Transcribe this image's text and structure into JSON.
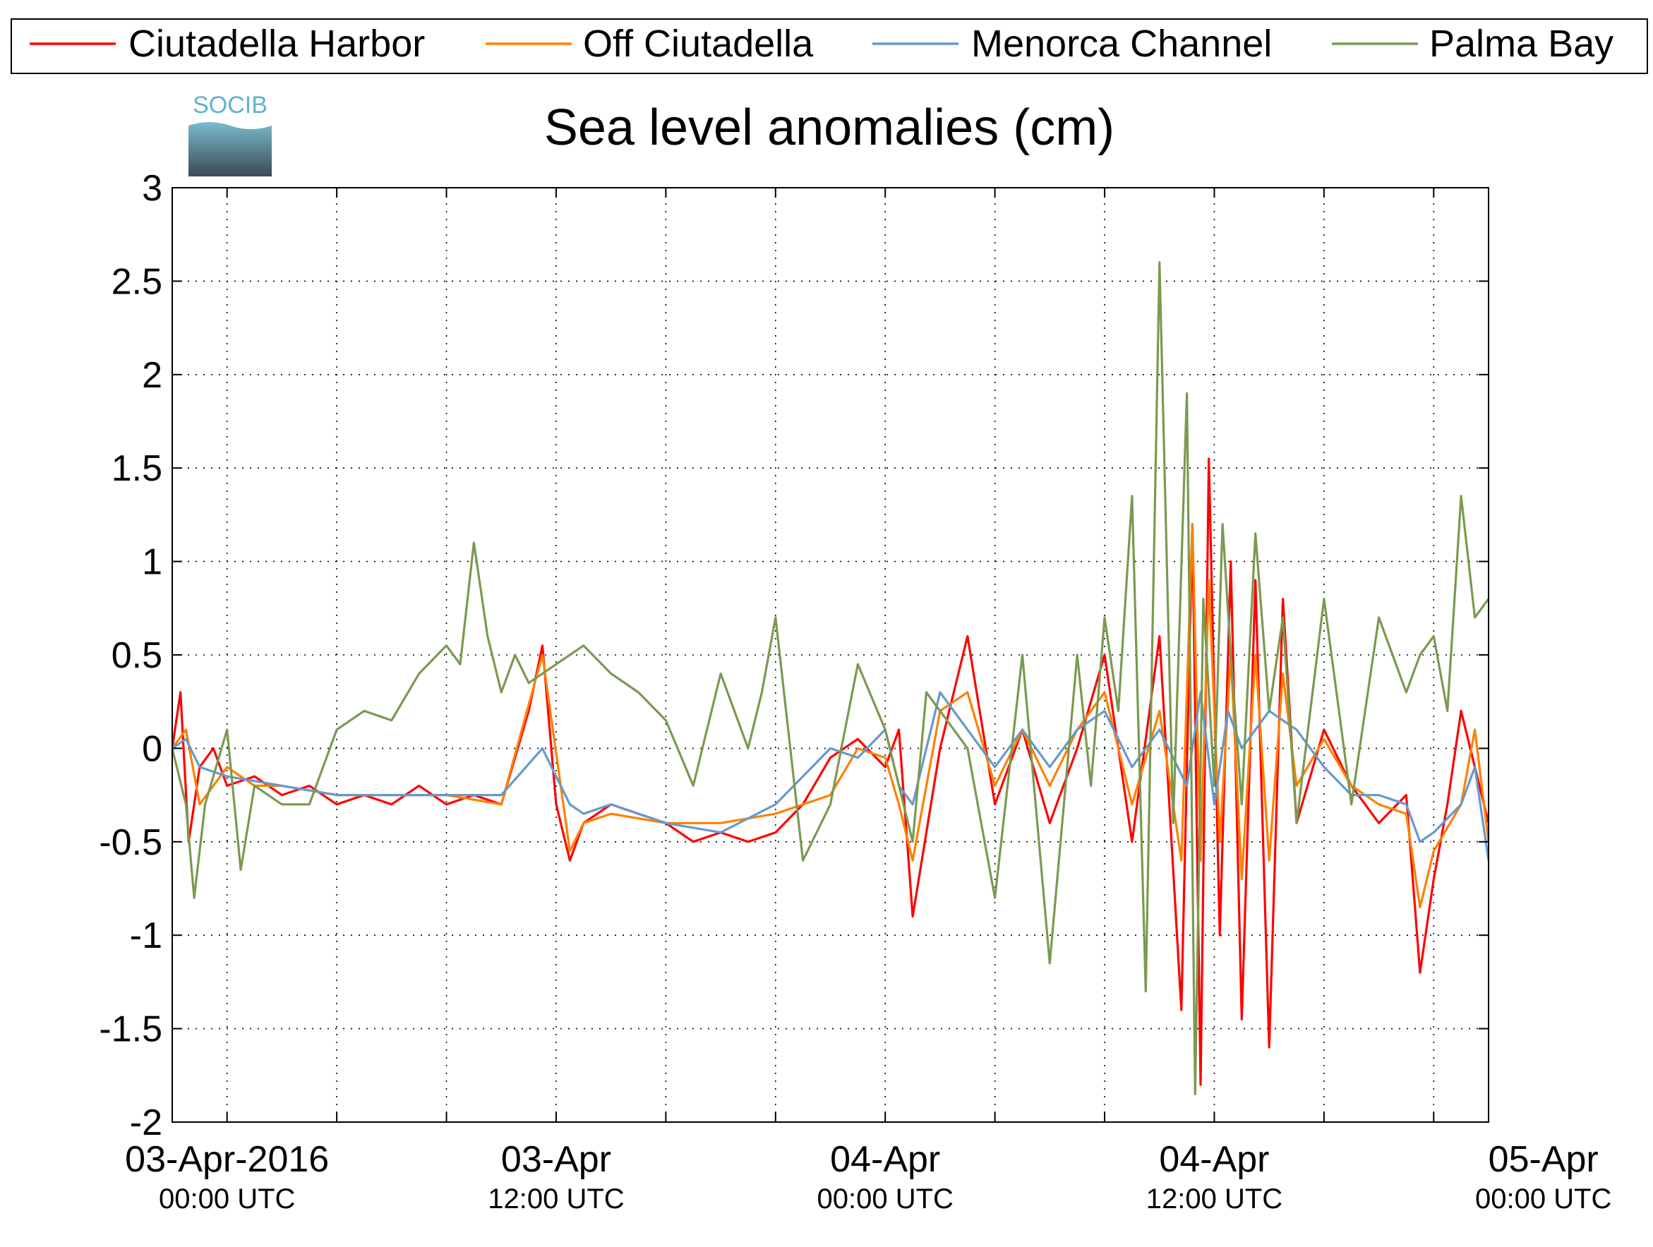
{
  "chart_data": {
    "type": "line",
    "title": "Sea level anomalies (cm)",
    "logo_text": "SOCIB",
    "xlabel": "",
    "ylabel": "",
    "ylim": [
      -2,
      3
    ],
    "yticks": [
      {
        "value": 3,
        "label": "3"
      },
      {
        "value": 2.5,
        "label": "2.5"
      },
      {
        "value": 2,
        "label": "2"
      },
      {
        "value": 1.5,
        "label": "1.5"
      },
      {
        "value": 1,
        "label": "1"
      },
      {
        "value": 0.5,
        "label": "0.5"
      },
      {
        "value": 0,
        "label": "0"
      },
      {
        "value": -0.5,
        "label": "-0.5"
      },
      {
        "value": -1,
        "label": "-1"
      },
      {
        "value": -1.5,
        "label": "-1.5"
      },
      {
        "value": -2,
        "label": "-2"
      }
    ],
    "x_start": "2016-04-02 22:00 UTC",
    "x_end": "2016-04-05 00:00 UTC",
    "x_unit": "hours",
    "xlim_hours": [
      0,
      48
    ],
    "xticks": [
      {
        "hour": 2,
        "label": "03-Apr-2016",
        "sublabel": "00:00 UTC"
      },
      {
        "hour": 14,
        "label": "03-Apr",
        "sublabel": "12:00 UTC"
      },
      {
        "hour": 26,
        "label": "04-Apr",
        "sublabel": "00:00 UTC"
      },
      {
        "hour": 38,
        "label": "04-Apr",
        "sublabel": "12:00 UTC"
      },
      {
        "hour": 50,
        "label": "05-Apr",
        "sublabel": "00:00 UTC"
      }
    ],
    "minor_xticks_hours": [
      0,
      2,
      6,
      10,
      14,
      18,
      22,
      26,
      30,
      34,
      38,
      42,
      46
    ],
    "grid": "dotted",
    "legend_position": "top",
    "series": [
      {
        "name": "Ciutadella Harbor",
        "color": "#ff0000",
        "x": [
          0,
          0.3,
          0.6,
          1,
          1.5,
          2,
          3,
          4,
          5,
          6,
          7,
          8,
          9,
          10,
          11,
          12,
          13,
          13.5,
          14,
          14.5,
          15,
          16,
          17,
          18,
          19,
          20,
          21,
          22,
          23,
          24,
          25,
          26,
          26.5,
          27,
          28,
          29,
          30,
          31,
          32,
          33,
          34,
          35,
          36,
          36.8,
          37.2,
          37.5,
          37.8,
          38.2,
          38.6,
          39,
          39.5,
          40,
          40.5,
          41,
          42,
          43,
          44,
          45,
          45.5,
          46,
          46.5,
          47,
          47.5,
          48
        ],
        "y": [
          0,
          0.3,
          -0.5,
          -0.1,
          0,
          -0.2,
          -0.15,
          -0.25,
          -0.2,
          -0.3,
          -0.25,
          -0.3,
          -0.2,
          -0.3,
          -0.25,
          -0.3,
          0.2,
          0.55,
          -0.3,
          -0.6,
          -0.4,
          -0.3,
          -0.35,
          -0.4,
          -0.5,
          -0.45,
          -0.5,
          -0.45,
          -0.3,
          -0.05,
          0.05,
          -0.1,
          0.1,
          -0.9,
          0,
          0.6,
          -0.3,
          0.1,
          -0.4,
          0,
          0.5,
          -0.5,
          0.6,
          -1.4,
          1.2,
          -1.8,
          1.55,
          -1.0,
          1.0,
          -1.45,
          0.9,
          -1.6,
          0.8,
          -0.4,
          0.1,
          -0.2,
          -0.4,
          -0.25,
          -1.2,
          -0.7,
          -0.3,
          0.2,
          -0.1,
          -0.4
        ]
      },
      {
        "name": "Off Ciutadella",
        "color": "#ff8000",
        "x": [
          0,
          0.5,
          1,
          2,
          3,
          4,
          6,
          8,
          10,
          12,
          13.5,
          14.5,
          15,
          16,
          18,
          20,
          22,
          24,
          25,
          26,
          26.5,
          27,
          28,
          29,
          30,
          31,
          32,
          33,
          34,
          35,
          36,
          36.8,
          37.2,
          37.5,
          37.8,
          38.2,
          38.6,
          39,
          39.5,
          40,
          40.5,
          41,
          42,
          43,
          44,
          45,
          45.5,
          46,
          47,
          47.5,
          48
        ],
        "y": [
          0,
          0.1,
          -0.3,
          -0.1,
          -0.2,
          -0.2,
          -0.25,
          -0.25,
          -0.25,
          -0.3,
          0.5,
          -0.55,
          -0.4,
          -0.35,
          -0.4,
          -0.4,
          -0.35,
          -0.25,
          0,
          -0.05,
          -0.3,
          -0.6,
          0.2,
          0.3,
          -0.2,
          0.1,
          -0.2,
          0.1,
          0.3,
          -0.3,
          0.2,
          -0.6,
          1.2,
          -0.6,
          0.9,
          -0.5,
          0.5,
          -0.7,
          0.5,
          -0.6,
          0.4,
          -0.2,
          0.05,
          -0.2,
          -0.3,
          -0.35,
          -0.85,
          -0.55,
          -0.3,
          0.1,
          -0.5
        ]
      },
      {
        "name": "Menorca Channel",
        "color": "#6699cc",
        "x": [
          0,
          0.5,
          1,
          2,
          4,
          6,
          8,
          10,
          12,
          13.5,
          14.5,
          15,
          16,
          18,
          20,
          22,
          24,
          25,
          26,
          26.5,
          27,
          28,
          29,
          30,
          31,
          32,
          33,
          34,
          35,
          36,
          37,
          37.5,
          38,
          38.5,
          39,
          40,
          41,
          42,
          43,
          44,
          45,
          45.5,
          46,
          47,
          47.5,
          48
        ],
        "y": [
          0,
          0.05,
          -0.1,
          -0.15,
          -0.2,
          -0.25,
          -0.25,
          -0.25,
          -0.25,
          0,
          -0.3,
          -0.35,
          -0.3,
          -0.4,
          -0.45,
          -0.3,
          0,
          -0.05,
          0.1,
          -0.2,
          -0.3,
          0.3,
          0.1,
          -0.1,
          0.1,
          -0.1,
          0.1,
          0.2,
          -0.1,
          0.1,
          -0.2,
          0.3,
          -0.3,
          0.2,
          0,
          0.2,
          0.1,
          -0.1,
          -0.25,
          -0.25,
          -0.3,
          -0.5,
          -0.45,
          -0.3,
          -0.1,
          -0.6
        ]
      },
      {
        "name": "Palma Bay",
        "color": "#7a9a50",
        "x": [
          0,
          0.5,
          0.8,
          1.2,
          2,
          2.5,
          3,
          4,
          5,
          6,
          7,
          8,
          9,
          10,
          10.5,
          11,
          11.5,
          12,
          12.5,
          13,
          14,
          15,
          16,
          17,
          18,
          19,
          20,
          21,
          21.5,
          22,
          23,
          24,
          25,
          26,
          27,
          27.5,
          28,
          29,
          30,
          31,
          32,
          33,
          33.5,
          34,
          34.5,
          35,
          35.5,
          36,
          36.5,
          37,
          37.3,
          37.6,
          38,
          38.3,
          38.6,
          39,
          39.5,
          40,
          40.5,
          41,
          42,
          43,
          44,
          45,
          45.5,
          46,
          46.5,
          47,
          47.5,
          48
        ],
        "y": [
          0,
          -0.3,
          -0.8,
          -0.3,
          0.1,
          -0.65,
          -0.2,
          -0.3,
          -0.3,
          0.1,
          0.2,
          0.15,
          0.4,
          0.55,
          0.45,
          1.1,
          0.6,
          0.3,
          0.5,
          0.35,
          0.45,
          0.55,
          0.4,
          0.3,
          0.15,
          -0.2,
          0.4,
          0,
          0.3,
          0.7,
          -0.6,
          -0.3,
          0.45,
          0.1,
          -0.5,
          0.3,
          0.2,
          0,
          -0.8,
          0.5,
          -1.15,
          0.5,
          -0.2,
          0.7,
          0.2,
          1.35,
          -1.3,
          2.6,
          -0.4,
          1.9,
          -1.85,
          0.8,
          -0.2,
          1.2,
          0.5,
          -0.3,
          1.15,
          0.2,
          0.7,
          -0.4,
          0.8,
          -0.3,
          0.7,
          0.3,
          0.5,
          0.6,
          0.2,
          1.35,
          0.7,
          0.8
        ]
      }
    ]
  }
}
